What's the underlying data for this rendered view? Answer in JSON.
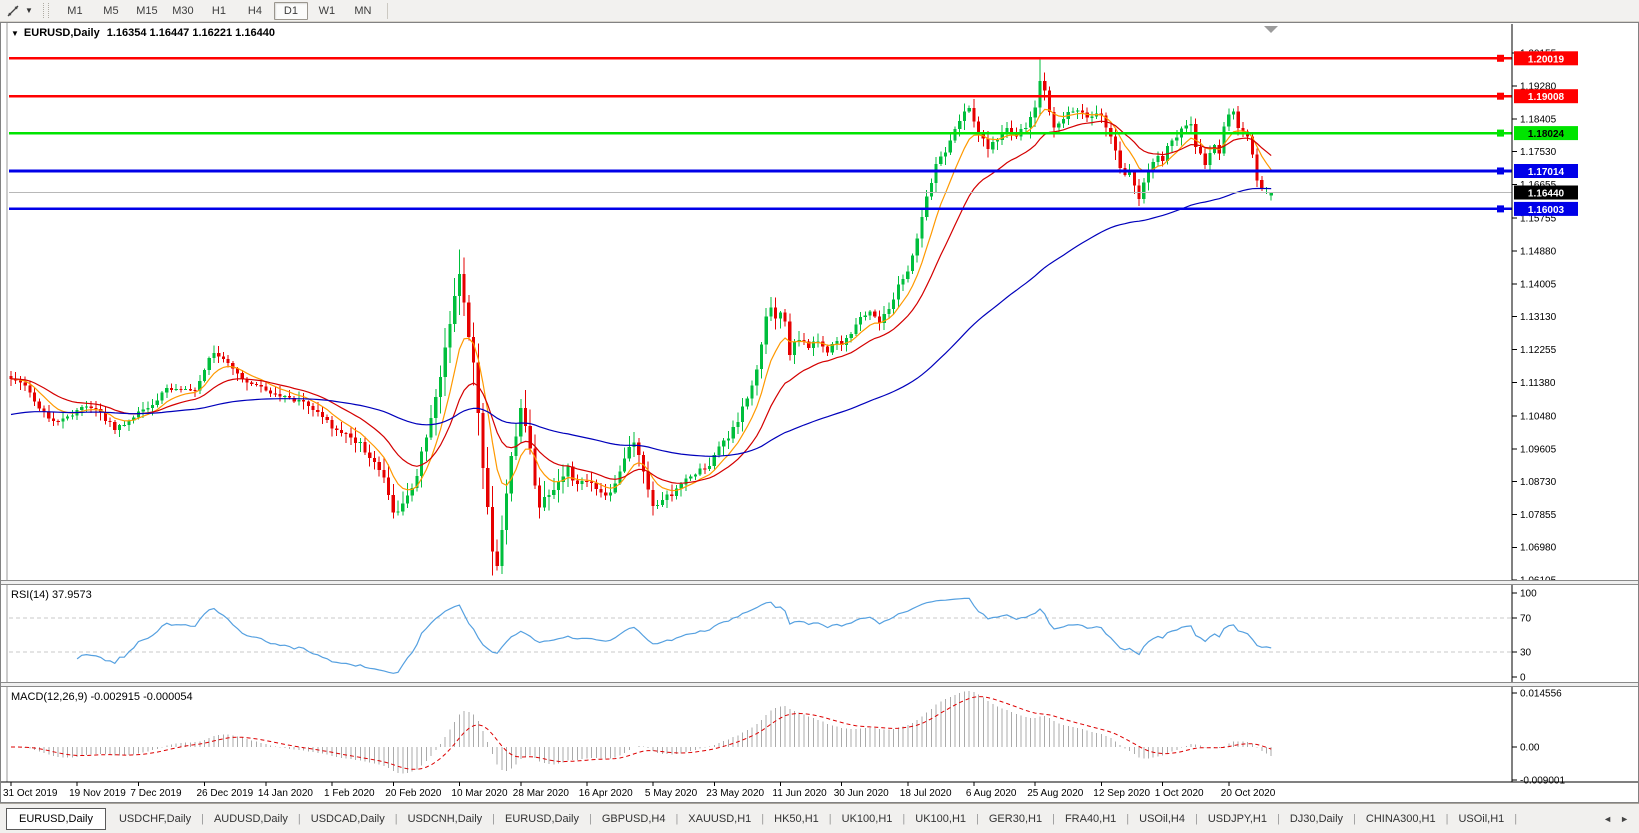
{
  "toolbar": {
    "timeframes": [
      "M1",
      "M5",
      "M15",
      "M30",
      "H1",
      "H4",
      "D1",
      "W1",
      "MN"
    ],
    "active": "D1"
  },
  "chart": {
    "symbol_title": "EURUSD,Daily",
    "title_values": "1.16354 1.16447 1.16221 1.16440",
    "ohlc": {
      "open": "1.16354",
      "high": "1.16447",
      "low": "1.16221",
      "close": "1.16440"
    }
  },
  "panes": {
    "rsi": {
      "label": "RSI(14) 37.9573",
      "value": "37.9573",
      "axis_ticks": [
        "100",
        "70",
        "30",
        "0"
      ],
      "upper_level": 70,
      "lower_level": 30,
      "line_color": "#55A0E0"
    },
    "macd": {
      "label": "MACD(12,26,9) -0.002915 -0.000054",
      "macd_value": "-0.002915",
      "signal_value": "-0.000054",
      "axis_ticks": [
        "0.014556",
        "0.00",
        "-0.009001"
      ],
      "hist_color": "#ABABAB",
      "signal_color": "#DD0000"
    }
  },
  "tabs": {
    "items": [
      "EURUSD,Daily",
      "USDCHF,Daily",
      "AUDUSD,Daily",
      "USDCAD,Daily",
      "USDCNH,Daily",
      "EURUSD,Daily",
      "GBPUSD,H4",
      "XAUUSD,H1",
      "HK50,H1",
      "UK100,H1",
      "UK100,H1",
      "GER30,H1",
      "FRA40,H1",
      "USOil,H4",
      "USDJPY,H1",
      "DJ30,Daily",
      "CHINA300,H1",
      "USOil,H1"
    ],
    "active_index": 0,
    "scroll_left": "◄",
    "scroll_right": "►"
  },
  "chart_data": {
    "type": "candlestick",
    "symbol": "EURUSD",
    "period": "Daily",
    "bar_count": 268,
    "up_color": "#00BE3C",
    "down_color": "#E60000",
    "y_ticks": [
      "1.20155",
      "1.19280",
      "1.18405",
      "1.17530",
      "1.16655",
      "1.15755",
      "1.14880",
      "1.14005",
      "1.13130",
      "1.12255",
      "1.11380",
      "1.10480",
      "1.09605",
      "1.08730",
      "1.07855",
      "1.06980",
      "1.06105"
    ],
    "x_ticks": [
      {
        "d": 0,
        "label": "31 Oct 2019"
      },
      {
        "d": 14,
        "label": "19 Nov 2019"
      },
      {
        "d": 27,
        "label": "7 Dec 2019"
      },
      {
        "d": 41,
        "label": "26 Dec 2019"
      },
      {
        "d": 54,
        "label": "14 Jan 2020"
      },
      {
        "d": 68,
        "label": "1 Feb 2020"
      },
      {
        "d": 81,
        "label": "20 Feb 2020"
      },
      {
        "d": 95,
        "label": "10 Mar 2020"
      },
      {
        "d": 108,
        "label": "28 Mar 2020"
      },
      {
        "d": 122,
        "label": "16 Apr 2020"
      },
      {
        "d": 136,
        "label": "5 May 2020"
      },
      {
        "d": 149,
        "label": "23 May 2020"
      },
      {
        "d": 163,
        "label": "11 Jun 2020"
      },
      {
        "d": 176,
        "label": "30 Jun 2020"
      },
      {
        "d": 190,
        "label": "18 Jul 2020"
      },
      {
        "d": 204,
        "label": "6 Aug 2020"
      },
      {
        "d": 217,
        "label": "25 Aug 2020"
      },
      {
        "d": 231,
        "label": "12 Sep 2020"
      },
      {
        "d": 244,
        "label": "1 Oct 2020"
      },
      {
        "d": 258,
        "label": "20 Oct 2020"
      }
    ],
    "hlines": [
      {
        "label": "1.20019",
        "price": 1.20019,
        "line_color": "#FF0000",
        "box_color": "#FF0000",
        "text_color": "#FFFFFF",
        "width": 2.6
      },
      {
        "label": "1.19008",
        "price": 1.19008,
        "line_color": "#FF0000",
        "box_color": "#FF0000",
        "text_color": "#FFFFFF",
        "width": 2.6
      },
      {
        "label": "1.18024",
        "price": 1.18024,
        "line_color": "#00E400",
        "box_color": "#00E400",
        "text_color": "#000000",
        "width": 2.6
      },
      {
        "label": "1.17014",
        "price": 1.17014,
        "line_color": "#0000E8",
        "box_color": "#0000E8",
        "text_color": "#FFFFFF",
        "width": 2.6
      },
      {
        "label": "1.16440",
        "price": 1.1644,
        "line_color": "#B8B8B8",
        "box_color": "#000000",
        "text_color": "#FFFFFF",
        "width": 1,
        "current": true
      },
      {
        "label": "1.16003",
        "price": 1.16003,
        "line_color": "#0000E8",
        "box_color": "#0000E8",
        "text_color": "#FFFFFF",
        "width": 2.6
      }
    ],
    "moving_averages": [
      {
        "name": "ma-fast-orange-line",
        "period": 8,
        "color": "#FF9900"
      },
      {
        "name": "ma-mid-red-line",
        "period": 20,
        "color": "#D40000"
      },
      {
        "name": "ma-slow-blue-line",
        "period": 90,
        "color": "#0000BB",
        "seed": 1.105
      }
    ],
    "indicators": [
      {
        "name": "RSI",
        "period": 14
      },
      {
        "name": "MACD",
        "fast": 12,
        "slow": 26,
        "signal": 9
      }
    ],
    "close_anchors": [
      [
        0,
        1.1152
      ],
      [
        3,
        1.1128
      ],
      [
        6,
        1.1072
      ],
      [
        9,
        1.1032
      ],
      [
        12,
        1.1045
      ],
      [
        14,
        1.1062
      ],
      [
        16,
        1.1078
      ],
      [
        18,
        1.1068
      ],
      [
        20,
        1.104
      ],
      [
        22,
        1.1015
      ],
      [
        24,
        1.1025
      ],
      [
        27,
        1.1058
      ],
      [
        30,
        1.1082
      ],
      [
        33,
        1.1118
      ],
      [
        36,
        1.1122
      ],
      [
        39,
        1.1118
      ],
      [
        41,
        1.1175
      ],
      [
        43,
        1.122
      ],
      [
        45,
        1.12
      ],
      [
        47,
        1.117
      ],
      [
        50,
        1.114
      ],
      [
        54,
        1.1115
      ],
      [
        58,
        1.1098
      ],
      [
        62,
        1.1088
      ],
      [
        66,
        1.1052
      ],
      [
        68,
        1.102
      ],
      [
        71,
        1.1
      ],
      [
        74,
        1.0972
      ],
      [
        77,
        1.0925
      ],
      [
        79,
        1.088
      ],
      [
        81,
        1.079
      ],
      [
        82,
        1.0785
      ],
      [
        84,
        1.083
      ],
      [
        86,
        1.09
      ],
      [
        88,
        1.0985
      ],
      [
        90,
        1.11
      ],
      [
        92,
        1.1215
      ],
      [
        93,
        1.128
      ],
      [
        94,
        1.136
      ],
      [
        95,
        1.1445
      ],
      [
        96,
        1.135
      ],
      [
        97,
        1.127
      ],
      [
        98,
        1.118
      ],
      [
        99,
        1.106
      ],
      [
        100,
        1.092
      ],
      [
        101,
        1.079
      ],
      [
        102,
        1.07
      ],
      [
        103,
        1.066
      ],
      [
        104,
        1.0745
      ],
      [
        105,
        1.083
      ],
      [
        106,
        1.093
      ],
      [
        107,
        1.1
      ],
      [
        108,
        1.106
      ],
      [
        109,
        1.103
      ],
      [
        110,
        1.095
      ],
      [
        111,
        1.087
      ],
      [
        112,
        1.0812
      ],
      [
        114,
        1.0845
      ],
      [
        116,
        1.0875
      ],
      [
        118,
        1.0905
      ],
      [
        120,
        1.0865
      ],
      [
        122,
        1.0872
      ],
      [
        124,
        1.0855
      ],
      [
        126,
        1.083
      ],
      [
        128,
        1.0862
      ],
      [
        130,
        1.0935
      ],
      [
        132,
        1.0978
      ],
      [
        133,
        1.095
      ],
      [
        134,
        1.0895
      ],
      [
        135,
        1.085
      ],
      [
        136,
        1.0808
      ],
      [
        138,
        1.0822
      ],
      [
        140,
        1.0842
      ],
      [
        142,
        1.0868
      ],
      [
        144,
        1.089
      ],
      [
        146,
        1.0902
      ],
      [
        148,
        1.092
      ],
      [
        150,
        1.0962
      ],
      [
        152,
        1.0988
      ],
      [
        154,
        1.1035
      ],
      [
        156,
        1.1095
      ],
      [
        158,
        1.118
      ],
      [
        159,
        1.1245
      ],
      [
        160,
        1.132
      ],
      [
        161,
        1.1345
      ],
      [
        162,
        1.13
      ],
      [
        163,
        1.133
      ],
      [
        164,
        1.1295
      ],
      [
        165,
        1.1215
      ],
      [
        166,
        1.124
      ],
      [
        167,
        1.1255
      ],
      [
        169,
        1.1232
      ],
      [
        171,
        1.1252
      ],
      [
        173,
        1.1222
      ],
      [
        175,
        1.1248
      ],
      [
        176,
        1.1242
      ],
      [
        178,
        1.1272
      ],
      [
        180,
        1.131
      ],
      [
        182,
        1.1332
      ],
      [
        184,
        1.1298
      ],
      [
        186,
        1.133
      ],
      [
        188,
        1.1398
      ],
      [
        190,
        1.1428
      ],
      [
        192,
        1.1528
      ],
      [
        194,
        1.1628
      ],
      [
        196,
        1.1718
      ],
      [
        198,
        1.1748
      ],
      [
        199,
        1.1778
      ],
      [
        200,
        1.1808
      ],
      [
        201,
        1.184
      ],
      [
        203,
        1.1868
      ],
      [
        204,
        1.1832
      ],
      [
        205,
        1.1808
      ],
      [
        207,
        1.1762
      ],
      [
        209,
        1.1788
      ],
      [
        211,
        1.181
      ],
      [
        213,
        1.1792
      ],
      [
        215,
        1.1822
      ],
      [
        216,
        1.184
      ],
      [
        217,
        1.1878
      ],
      [
        218,
        1.1935
      ],
      [
        219,
        1.1918
      ],
      [
        220,
        1.1852
      ],
      [
        221,
        1.1818
      ],
      [
        222,
        1.1832
      ],
      [
        224,
        1.1855
      ],
      [
        226,
        1.1862
      ],
      [
        228,
        1.1848
      ],
      [
        231,
        1.185
      ],
      [
        233,
        1.1792
      ],
      [
        234,
        1.176
      ],
      [
        235,
        1.1715
      ],
      [
        236,
        1.1688
      ],
      [
        237,
        1.1692
      ],
      [
        238,
        1.1665
      ],
      [
        239,
        1.1632
      ],
      [
        240,
        1.1665
      ],
      [
        241,
        1.17
      ],
      [
        242,
        1.1722
      ],
      [
        243,
        1.1745
      ],
      [
        244,
        1.1732
      ],
      [
        245,
        1.1762
      ],
      [
        246,
        1.1788
      ],
      [
        247,
        1.1792
      ],
      [
        248,
        1.1812
      ],
      [
        250,
        1.1832
      ],
      [
        251,
        1.1762
      ],
      [
        252,
        1.1742
      ],
      [
        253,
        1.1722
      ],
      [
        254,
        1.1752
      ],
      [
        255,
        1.1772
      ],
      [
        256,
        1.1748
      ],
      [
        257,
        1.1825
      ],
      [
        258,
        1.1852
      ],
      [
        259,
        1.1862
      ],
      [
        260,
        1.1815
      ],
      [
        261,
        1.181
      ],
      [
        262,
        1.1795
      ],
      [
        263,
        1.1748
      ],
      [
        264,
        1.1675
      ],
      [
        265,
        1.165
      ],
      [
        266,
        1.1652
      ],
      [
        267,
        1.1644
      ]
    ],
    "volatility_anchors": [
      [
        0,
        0.9
      ],
      [
        40,
        0.8
      ],
      [
        62,
        0.9
      ],
      [
        78,
        1.3
      ],
      [
        88,
        1.9
      ],
      [
        95,
        2.6
      ],
      [
        103,
        3.0
      ],
      [
        109,
        2.2
      ],
      [
        115,
        1.6
      ],
      [
        125,
        1.2
      ],
      [
        136,
        1.3
      ],
      [
        146,
        0.9
      ],
      [
        158,
        1.3
      ],
      [
        165,
        1.1
      ],
      [
        176,
        0.8
      ],
      [
        188,
        1.0
      ],
      [
        199,
        1.1
      ],
      [
        210,
        0.9
      ],
      [
        218,
        1.5
      ],
      [
        224,
        0.8
      ],
      [
        234,
        1.0
      ],
      [
        240,
        0.9
      ],
      [
        251,
        0.9
      ],
      [
        258,
        0.8
      ],
      [
        267,
        0.9
      ]
    ],
    "special_bars": [
      {
        "d": 95,
        "high": 1.1492
      },
      {
        "d": 103,
        "low": 1.0636
      },
      {
        "d": 218,
        "high": 1.2001
      },
      {
        "d": 267,
        "open": 1.16354,
        "high": 1.16447,
        "low": 1.16221,
        "close": 1.1644
      }
    ]
  }
}
